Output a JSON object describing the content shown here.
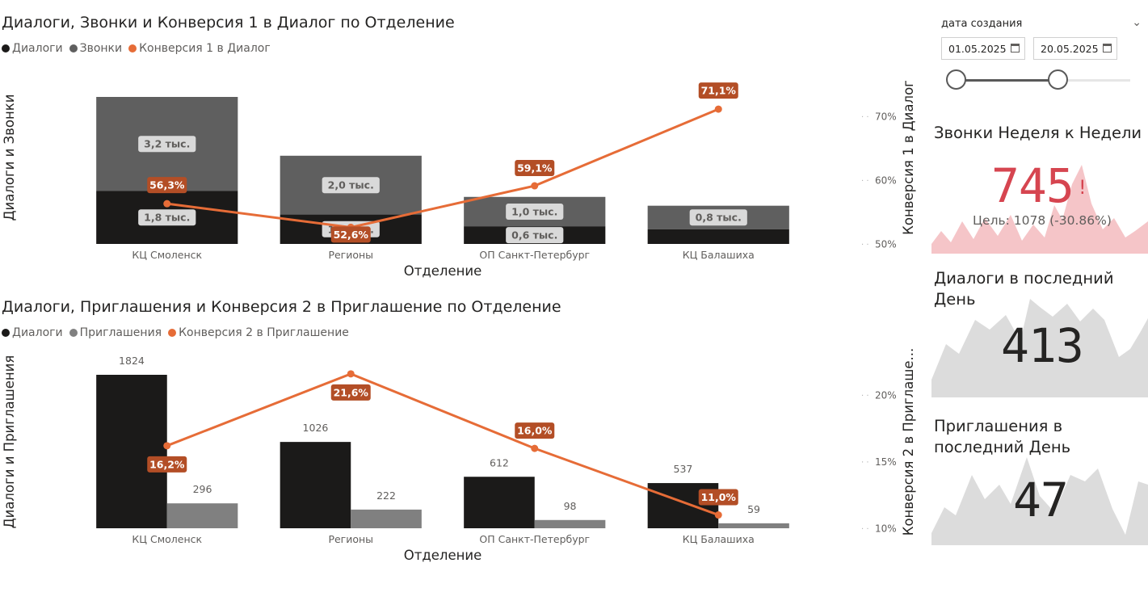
{
  "chart_data": [
    {
      "type": "bar",
      "title": "Диалоги, Звонки и Конверсия 1 в Диалог по Отделение",
      "legend": [
        {
          "label": "Диалоги",
          "color": "#1b1a19"
        },
        {
          "label": "Звонки",
          "color": "#5f5f5f"
        },
        {
          "label": "Конверсия 1 в Диалог",
          "color": "#e66c37"
        }
      ],
      "xlabel": "Отделение",
      "ylabel": "Диалоги и Звонки",
      "y2label": "Конверсия 1 в Диалог",
      "categories": [
        "КЦ Смоленск",
        "Регионы",
        "ОП Санкт-Петербург",
        "КЦ Балашиха"
      ],
      "stacked": true,
      "ylim": [
        0,
        5000
      ],
      "series": [
        {
          "name": "Диалоги",
          "values": [
            1800,
            1000,
            600,
            500
          ],
          "labels": [
            "1,8 тыс.",
            "1,0 тыс.",
            "0,6 тыс.",
            ""
          ]
        },
        {
          "name": "Звонки",
          "values": [
            3200,
            2000,
            1000,
            800
          ],
          "labels": [
            "3,2 тыс.",
            "2,0 тыс.",
            "1,0 тыс.",
            "0,8 тыс."
          ]
        }
      ],
      "line": {
        "name": "Конверсия 1 в Диалог",
        "values": [
          56.3,
          52.6,
          59.1,
          71.1
        ],
        "labels": [
          "56,3%",
          "52,6%",
          "59,1%",
          "71,1%"
        ]
      },
      "y2lim": [
        50,
        72
      ],
      "y2ticks": [
        {
          "value": 70,
          "label": "70%"
        },
        {
          "value": 60,
          "label": "60%"
        },
        {
          "value": 50,
          "label": "50%"
        }
      ],
      "colors": {
        "dialogs": "#1b1a19",
        "calls": "#5f5f5f",
        "line": "#e66c37",
        "lineLabelBg": "#b34e26",
        "dataLabelBg": "#d9d9d9"
      }
    },
    {
      "type": "bar",
      "title": "Диалоги, Приглашения и Конверсия 2 в Приглашение по Отделение",
      "legend": [
        {
          "label": "Диалоги",
          "color": "#1b1a19"
        },
        {
          "label": "Приглашения",
          "color": "#808080"
        },
        {
          "label": "Конверсия 2 в Приглашение",
          "color": "#e66c37"
        }
      ],
      "xlabel": "Отделение",
      "ylabel": "Диалоги и Приглашения",
      "y2label": "Конверсия 2 в Приглаше...",
      "categories": [
        "КЦ Смоленск",
        "Регионы",
        "ОП Санкт-Петербург",
        "КЦ Балашиха"
      ],
      "stacked": false,
      "ylim": [
        0,
        1824
      ],
      "series": [
        {
          "name": "Диалоги",
          "values": [
            1824,
            1026,
            612,
            537
          ],
          "labels": [
            "1824",
            "1026",
            "612",
            "537"
          ]
        },
        {
          "name": "Приглашения",
          "values": [
            296,
            222,
            98,
            59
          ],
          "labels": [
            "296",
            "222",
            "98",
            "59"
          ]
        }
      ],
      "line": {
        "name": "Конверсия 2 в Приглашение",
        "values": [
          16.2,
          21.6,
          16.0,
          11.0
        ],
        "labels": [
          "16,2%",
          "21,6%",
          "16,0%",
          "11,0%"
        ]
      },
      "y2lim": [
        10,
        22.5
      ],
      "y2ticks": [
        {
          "value": 20,
          "label": "20%"
        },
        {
          "value": 15,
          "label": "15%"
        },
        {
          "value": 10,
          "label": "10%"
        }
      ],
      "colors": {
        "dialogs": "#1b1a19",
        "invites": "#808080",
        "line": "#e66c37",
        "lineLabelBg": "#b34e26"
      }
    }
  ],
  "slicer": {
    "title": "дата создания",
    "from": "01.05.2025",
    "to": "20.05.2025",
    "range_fraction": [
      0,
      0.66
    ],
    "chevron": "chevron-down-icon",
    "calendar_icon": "calendar-icon"
  },
  "kpi_cards": [
    {
      "title": "Звонки Неделя к Недели",
      "value": "745",
      "goal": "Цель: 1078 (-30.86%)",
      "status": "!",
      "value_color": "#d64550",
      "spark_color": "#f5c5c8"
    },
    {
      "title": "Диалоги в последний День",
      "value": "413",
      "value_color": "#252423",
      "spark_color": "#dcdcdc"
    },
    {
      "title": "Приглашения в последний День",
      "value": "47",
      "value_color": "#252423",
      "spark_color": "#dcdcdc"
    }
  ]
}
